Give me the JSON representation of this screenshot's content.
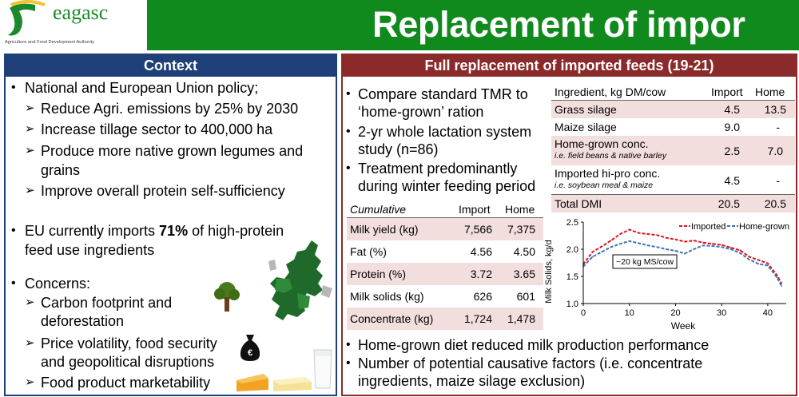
{
  "header": {
    "logo_name": "eagasc",
    "logo_tagline": "Agriculture and Food Development Authority",
    "title": "Replacement of impor"
  },
  "context": {
    "title": "Context",
    "policy": "National and European Union policy;",
    "policy_items": [
      "Reduce Agri. emissions by 25% by 2030",
      "Increase tillage sector to 400,000 ha",
      "Produce more native grown legumes and",
      "grains",
      "Improve overall protein self-sufficiency"
    ],
    "imports_pre": "EU currently imports ",
    "imports_pct": "71%",
    "imports_post": " of high-protein",
    "imports_line2": "feed use ingredients",
    "concerns": "Concerns:",
    "concern_items": [
      "Carbon footprint and",
      "deforestation",
      "Price volatility, food security",
      "and geopolitical disruptions",
      "Food product marketability"
    ]
  },
  "study": {
    "title": "Full replacement of imported feeds (19-21)",
    "bullets": [
      "Compare standard TMR to",
      "‘home-grown’ ration",
      "2-yr whole lactation system",
      "study (n=86)",
      "Treatment predominantly",
      "during winter feeding period"
    ],
    "ingredients": {
      "header": [
        "Ingredient, kg DM/cow",
        "Import",
        "Home"
      ],
      "rows": [
        {
          "name": "Grass silage",
          "sub": "",
          "import": "4.5",
          "home": "13.5"
        },
        {
          "name": "Maize silage",
          "sub": "",
          "import": "9.0",
          "home": "-"
        },
        {
          "name": "Home-grown conc.",
          "sub": "i.e. field beans & native barley",
          "import": "2.5",
          "home": "7.0"
        },
        {
          "name": "Imported hi-pro conc.",
          "sub": "i.e. soybean meal & maize",
          "import": "4.5",
          "home": "-"
        },
        {
          "name": "Total DMI",
          "sub": "",
          "import": "20.5",
          "home": "20.5"
        }
      ]
    },
    "performance": {
      "header": [
        "Cumulative",
        "Import",
        "Home"
      ],
      "rows": [
        {
          "name": "Milk yield (kg)",
          "import": "7,566",
          "home": "7,375"
        },
        {
          "name": "Fat (%)",
          "import": "4.56",
          "home": "4.50"
        },
        {
          "name": "Protein (%)",
          "import": "3.72",
          "home": "3.65"
        },
        {
          "name": "Milk solids (kg)",
          "import": "626",
          "home": "601"
        },
        {
          "name": "Concentrate (kg)",
          "import": "1,724",
          "home": "1,478"
        }
      ]
    },
    "conclusions": [
      "Home-grown diet reduced milk production performance",
      "Number of potential causative factors (i.e. concentrate",
      "ingredients, maize silage exclusion)"
    ]
  },
  "chart_data": {
    "type": "line",
    "xlabel": "Week",
    "ylabel": "Milk Solids, kg/d",
    "xlim": [
      0,
      44
    ],
    "ylim": [
      1.0,
      2.5
    ],
    "xticks": [
      "0",
      "10",
      "20",
      "30",
      "40"
    ],
    "yticks": [
      "1.0",
      "1.5",
      "2.0",
      "2.5"
    ],
    "annotation": "~20 kg MS/cow",
    "legend_position": "top-right",
    "series": [
      {
        "name": "Imported",
        "color": "#e0121a",
        "x": [
          0,
          2,
          4,
          6,
          8,
          10,
          12,
          14,
          16,
          18,
          20,
          22,
          24,
          26,
          28,
          30,
          32,
          34,
          36,
          38,
          40,
          42,
          43
        ],
        "y": [
          1.72,
          1.95,
          2.05,
          2.16,
          2.28,
          2.36,
          2.3,
          2.28,
          2.26,
          2.21,
          2.18,
          2.14,
          2.16,
          2.12,
          2.1,
          2.08,
          2.03,
          1.98,
          1.86,
          1.8,
          1.74,
          1.52,
          1.37
        ]
      },
      {
        "name": "Home-grown",
        "color": "#3d73b8",
        "x": [
          0,
          2,
          4,
          6,
          8,
          10,
          12,
          14,
          16,
          18,
          20,
          22,
          24,
          26,
          28,
          30,
          32,
          34,
          36,
          38,
          40,
          42,
          43
        ],
        "y": [
          1.68,
          1.86,
          1.95,
          2.04,
          2.1,
          2.15,
          2.11,
          2.07,
          2.04,
          2.0,
          1.97,
          1.92,
          2.0,
          2.07,
          2.06,
          2.04,
          2.0,
          1.93,
          1.81,
          1.73,
          1.7,
          1.48,
          1.32
        ]
      }
    ]
  },
  "colors": {
    "header_green": "#118a1d",
    "context_blue": "#1f3f78",
    "study_red": "#8b2a2a",
    "row_shade": "#f3dede"
  }
}
